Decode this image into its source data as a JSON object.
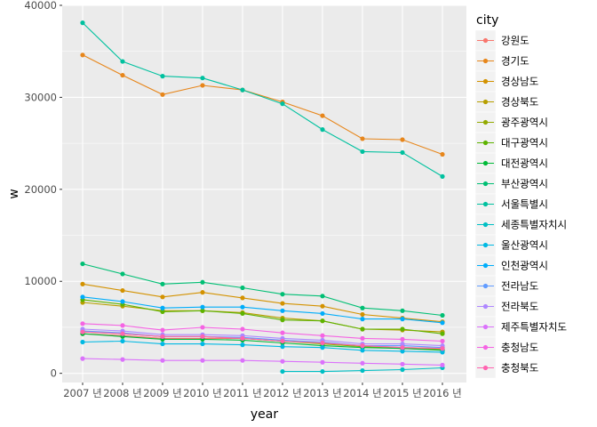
{
  "chart_data": {
    "type": "line",
    "xlabel": "year",
    "ylabel": "w",
    "ylim": [
      -1000,
      40000
    ],
    "yticks": [
      0,
      10000,
      20000,
      30000,
      40000
    ],
    "x_categories": [
      "2007 년",
      "2008 년",
      "2009 년",
      "2010 년",
      "2011 년",
      "2012 년",
      "2013 년",
      "2014 년",
      "2015 년",
      "2016 년"
    ],
    "grid": true,
    "legend_title": "city",
    "legend_position": "right",
    "series": [
      {
        "name": "강원도",
        "color": "#F8766D",
        "values": [
          4300,
          4100,
          3800,
          3800,
          3800,
          3500,
          3300,
          3000,
          2800,
          2700
        ]
      },
      {
        "name": "경기도",
        "color": "#E7861B",
        "values": [
          34600,
          32400,
          30300,
          31300,
          30800,
          29500,
          28000,
          25500,
          25400,
          23800
        ]
      },
      {
        "name": "경상남도",
        "color": "#D39200",
        "values": [
          9700,
          9000,
          8300,
          8800,
          8200,
          7600,
          7300,
          6400,
          6000,
          5600
        ]
      },
      {
        "name": "경상북도",
        "color": "#B79F00",
        "values": [
          7700,
          7300,
          6800,
          6800,
          6600,
          6000,
          5700,
          4800,
          4700,
          4500
        ]
      },
      {
        "name": "광주광역시",
        "color": "#93AA00",
        "values": [
          4500,
          4300,
          4000,
          4000,
          3800,
          3500,
          3200,
          2900,
          2700,
          2600
        ]
      },
      {
        "name": "대구광역시",
        "color": "#5EB300",
        "values": [
          8000,
          7500,
          6700,
          6800,
          6500,
          5800,
          5700,
          4800,
          4800,
          4300
        ]
      },
      {
        "name": "대전광역시",
        "color": "#00BA38",
        "values": [
          4300,
          4000,
          3700,
          3700,
          3600,
          3300,
          3000,
          2800,
          2700,
          2500
        ]
      },
      {
        "name": "부산광역시",
        "color": "#00BF74",
        "values": [
          11900,
          10800,
          9700,
          9900,
          9300,
          8600,
          8400,
          7100,
          6800,
          6300
        ]
      },
      {
        "name": "서울특별시",
        "color": "#00C19F",
        "values": [
          38100,
          33900,
          32300,
          32100,
          30800,
          29300,
          26500,
          24100,
          24000,
          21400
        ]
      },
      {
        "name": "세종특별자치시",
        "color": "#00BFC4",
        "values": [
          null,
          null,
          null,
          null,
          null,
          200,
          200,
          300,
          400,
          600
        ]
      },
      {
        "name": "울산광역시",
        "color": "#00B9E3",
        "values": [
          3400,
          3500,
          3200,
          3200,
          3100,
          2900,
          2800,
          2500,
          2400,
          2300
        ]
      },
      {
        "name": "인천광역시",
        "color": "#00ADFA",
        "values": [
          8300,
          7800,
          7100,
          7200,
          7200,
          6800,
          6500,
          5900,
          5900,
          5500
        ]
      },
      {
        "name": "전라남도",
        "color": "#619CFF",
        "values": [
          4600,
          4400,
          4000,
          4000,
          3900,
          3600,
          3400,
          3000,
          3000,
          2800
        ]
      },
      {
        "name": "전라북도",
        "color": "#AE87FF",
        "values": [
          4800,
          4600,
          4200,
          4200,
          4100,
          3800,
          3600,
          3200,
          3200,
          3000
        ]
      },
      {
        "name": "제주특별자치도",
        "color": "#DB72FB",
        "values": [
          1600,
          1500,
          1400,
          1400,
          1400,
          1300,
          1200,
          1100,
          1000,
          900
        ]
      },
      {
        "name": "충청남도",
        "color": "#F564E3",
        "values": [
          5400,
          5200,
          4700,
          5000,
          4800,
          4400,
          4100,
          3800,
          3700,
          3500
        ]
      },
      {
        "name": "충청북도",
        "color": "#FF64B0",
        "values": [
          4500,
          4300,
          4000,
          4000,
          3800,
          3500,
          3300,
          3000,
          2800,
          2700
        ]
      }
    ]
  }
}
